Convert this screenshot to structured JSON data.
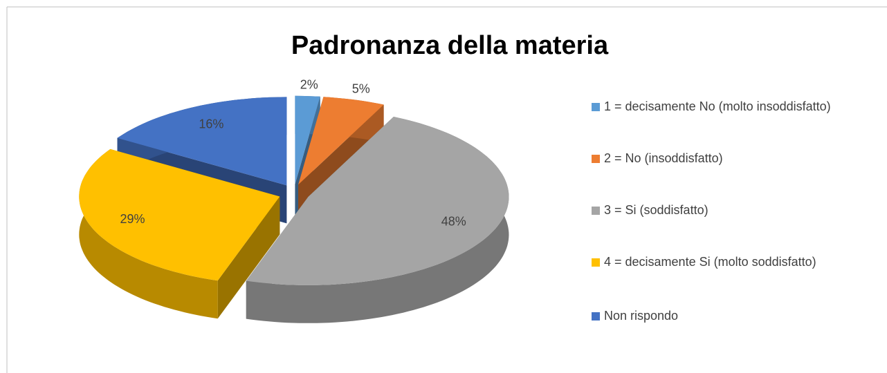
{
  "chart_data": {
    "type": "pie",
    "title": "Padronanza della materia",
    "categories": [
      "1 = decisamente No (molto insoddisfatto)",
      "2 = No (insoddisfatto)",
      "3 = Si (soddisfatto)",
      "4 = decisamente Si (molto soddisfatto)",
      "Non rispondo"
    ],
    "values": [
      2,
      5,
      48,
      29,
      16
    ],
    "value_labels": [
      "2%",
      "5%",
      "48%",
      "29%",
      "16%"
    ],
    "colors": [
      "#5b9bd5",
      "#ed7d31",
      "#a5a5a5",
      "#ffc000",
      "#4472c4"
    ],
    "legend": "right"
  }
}
